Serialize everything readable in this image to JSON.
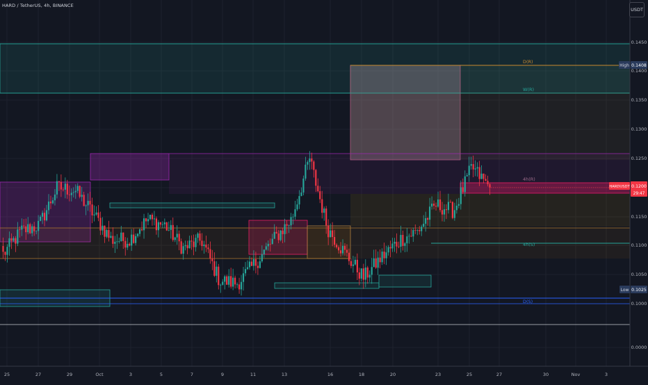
{
  "header": {
    "title": "HARD / TetherUS, 4h, BINANCE",
    "currency_button": "USDT"
  },
  "price_axis": {
    "labels": [
      "0.1450",
      "0.1400",
      "0.1350",
      "0.1300",
      "0.1250",
      "0.1150",
      "0.1100",
      "0.1050",
      "0.1000"
    ],
    "high_tag": {
      "label": "High",
      "value": "0.1408"
    },
    "low_tag": {
      "label": "Low",
      "value": "0.1025"
    },
    "current_price": {
      "symbol": "HARDUSDT",
      "value": "0.1200",
      "countdown": "29:47",
      "color": "#f23645"
    }
  },
  "indicator_axis": {
    "labels": [
      "0.0000"
    ]
  },
  "time_axis": {
    "labels": [
      "25",
      "27",
      "29",
      "Oct",
      "3",
      "5",
      "7",
      "9",
      "11",
      "13",
      "16",
      "18",
      "20",
      "23",
      "25",
      "27",
      "30",
      "Nov",
      "3"
    ]
  },
  "fib_labels": [
    "D(R)",
    "W(R)",
    "4h(R)",
    "4h(S)",
    "D(S)"
  ],
  "colors": {
    "background": "#131722",
    "up": "#26a69a",
    "down": "#f23645",
    "high_tag": "#2a3b5c",
    "low_tag": "#2a3b5c"
  },
  "chart_data": {
    "type": "candlestick",
    "symbol": "HARDUSDT",
    "interval": "4h",
    "exchange": "BINANCE",
    "ylim": [
      0.0965,
      0.1475
    ],
    "high": 0.1408,
    "low": 0.1025,
    "last": 0.12,
    "close_path": [
      {
        "x": "Sep 24",
        "y": 0.1085
      },
      {
        "x": "Sep 26",
        "y": 0.1125
      },
      {
        "x": "Sep 28",
        "y": 0.1135
      },
      {
        "x": "Sep 29",
        "y": 0.12
      },
      {
        "x": "Sep 30",
        "y": 0.1195
      },
      {
        "x": "Oct 2",
        "y": 0.1155
      },
      {
        "x": "Oct 4",
        "y": 0.111
      },
      {
        "x": "Oct 5",
        "y": 0.111
      },
      {
        "x": "Oct 6",
        "y": 0.1145
      },
      {
        "x": "Oct 8",
        "y": 0.1135
      },
      {
        "x": "Oct 9",
        "y": 0.1095
      },
      {
        "x": "Oct 10",
        "y": 0.111
      },
      {
        "x": "Oct 12",
        "y": 0.104
      },
      {
        "x": "Oct 13",
        "y": 0.1035
      },
      {
        "x": "Oct 14",
        "y": 0.107
      },
      {
        "x": "Oct 15",
        "y": 0.111
      },
      {
        "x": "Oct 16",
        "y": 0.1145
      },
      {
        "x": "Oct 17",
        "y": 0.125
      },
      {
        "x": "Oct 17",
        "y": 0.113
      },
      {
        "x": "Oct 18",
        "y": 0.1085
      },
      {
        "x": "Oct 19",
        "y": 0.1045
      },
      {
        "x": "Oct 20",
        "y": 0.108
      },
      {
        "x": "Oct 21",
        "y": 0.111
      },
      {
        "x": "Oct 23",
        "y": 0.1125
      },
      {
        "x": "Oct 24",
        "y": 0.117
      },
      {
        "x": "Oct 25",
        "y": 0.116
      },
      {
        "x": "Oct 26",
        "y": 0.1235
      },
      {
        "x": "Oct 26",
        "y": 0.12
      }
    ]
  }
}
